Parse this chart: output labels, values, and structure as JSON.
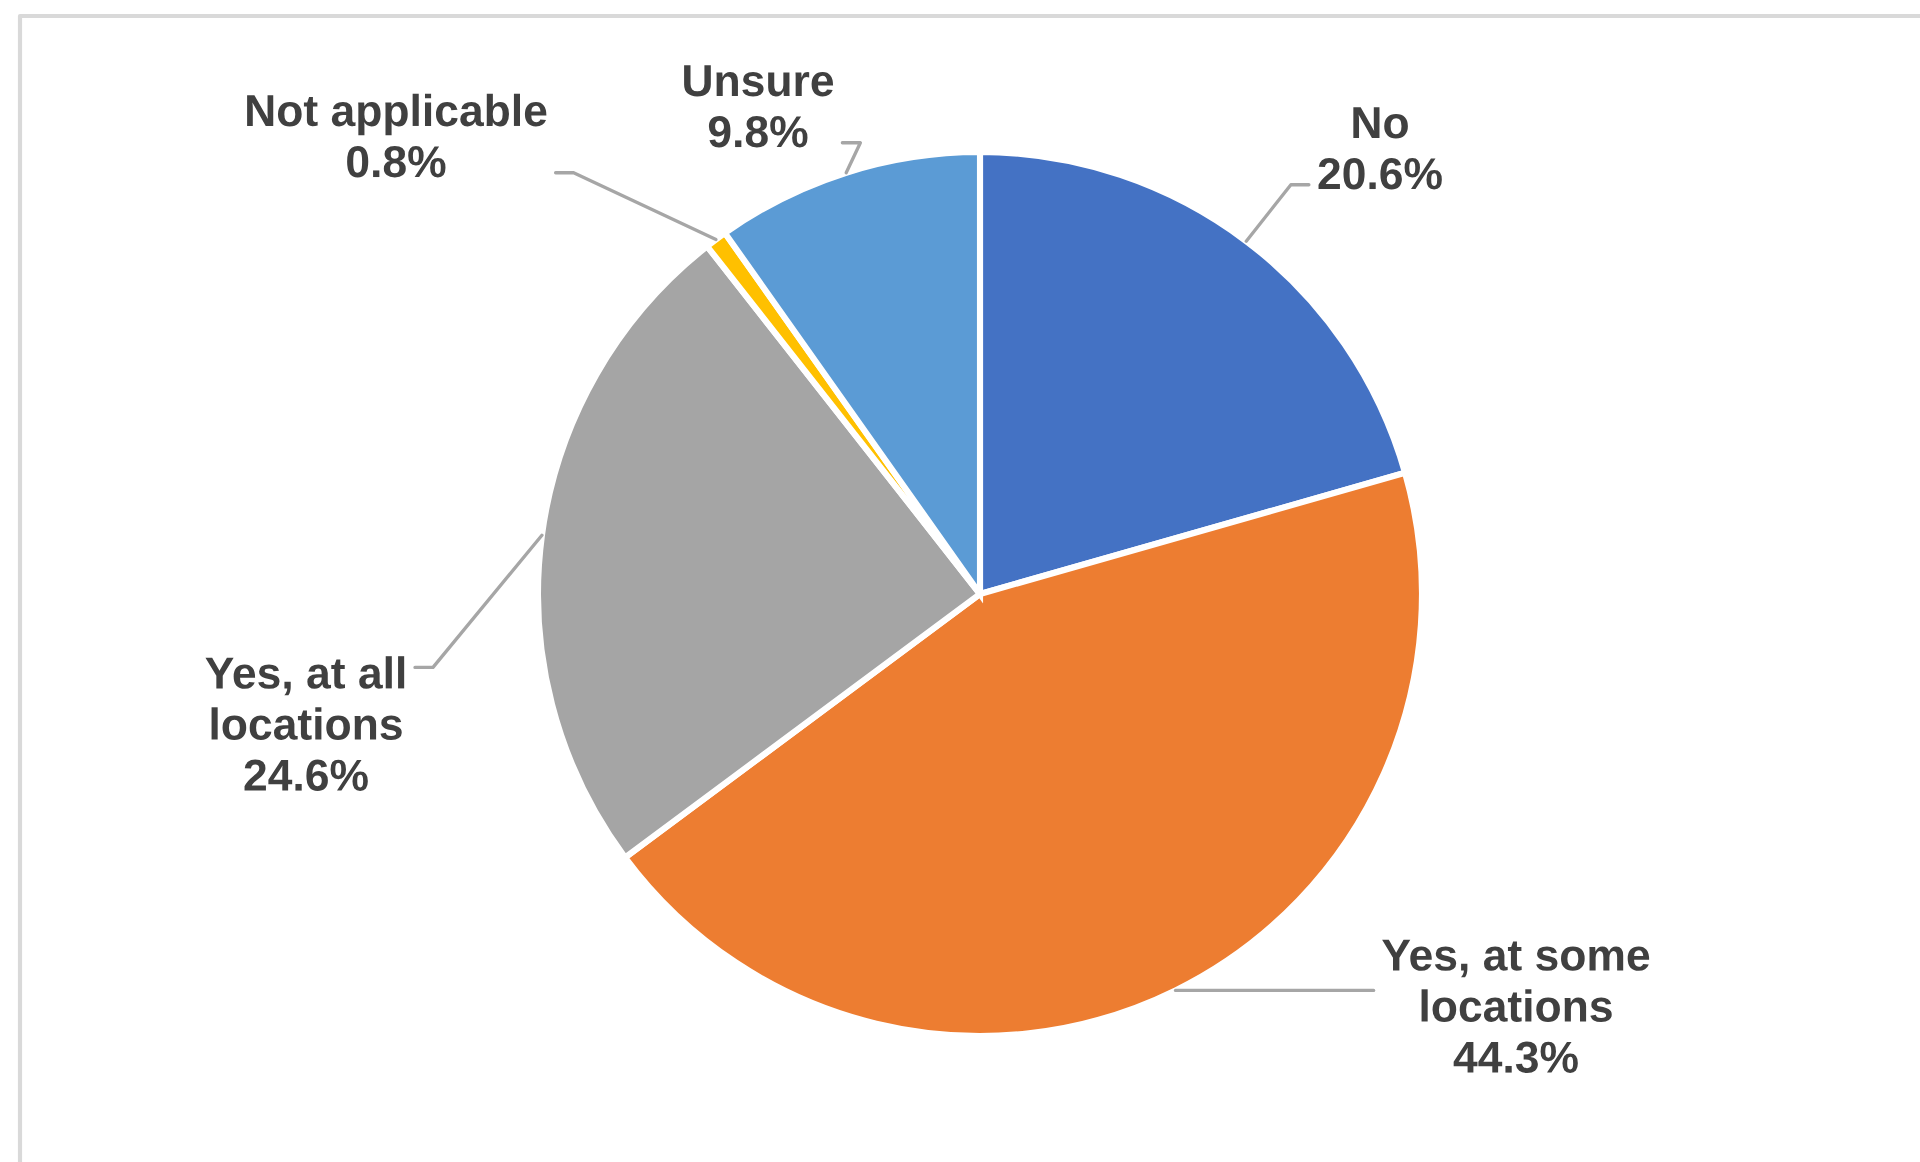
{
  "chart_data": {
    "type": "pie",
    "categories": [
      "No",
      "Yes, at some\nlocations",
      "Yes, at all\nlocations",
      "Not applicable",
      "Unsure"
    ],
    "values": [
      20.6,
      44.3,
      24.6,
      0.8,
      9.8
    ],
    "colors": [
      "#4472c4",
      "#ed7d31",
      "#a5a5a5",
      "#ffc000",
      "#5b9bd5"
    ],
    "value_labels": [
      "20.6%",
      "44.3%",
      "24.6%",
      "0.8%",
      "9.8%"
    ]
  }
}
